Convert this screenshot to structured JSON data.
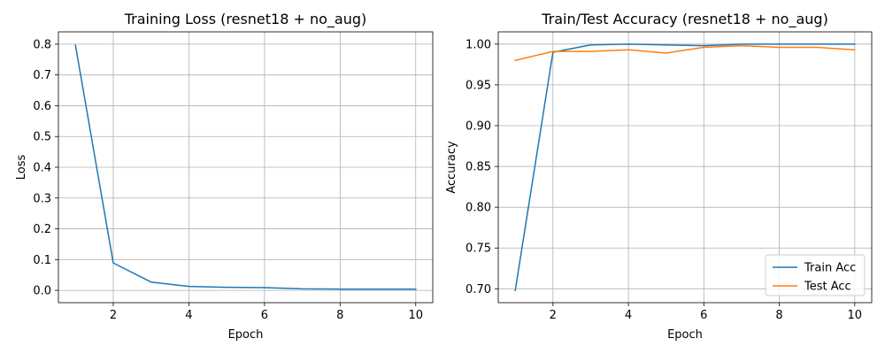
{
  "chart_data": [
    {
      "type": "line",
      "title": "Training Loss (resnet18 + no_aug)",
      "xlabel": "Epoch",
      "ylabel": "Loss",
      "xlim": [
        0.55,
        10.45
      ],
      "ylim": [
        -0.04,
        0.84
      ],
      "xticks": [
        2,
        4,
        6,
        8,
        10
      ],
      "xtick_labels": [
        "2",
        "4",
        "6",
        "8",
        "10"
      ],
      "yticks": [
        0.0,
        0.1,
        0.2,
        0.3,
        0.4,
        0.5,
        0.6,
        0.7,
        0.8
      ],
      "ytick_labels": [
        "0.0",
        "0.1",
        "0.2",
        "0.3",
        "0.4",
        "0.5",
        "0.6",
        "0.7",
        "0.8"
      ],
      "grid": true,
      "legend": "none",
      "x": [
        1,
        2,
        3,
        4,
        5,
        6,
        7,
        8,
        9,
        10
      ],
      "series": [
        {
          "name": "",
          "color": "#1f77b4",
          "values": [
            0.797,
            0.089,
            0.027,
            0.013,
            0.01,
            0.009,
            0.005,
            0.004,
            0.004,
            0.004
          ]
        }
      ]
    },
    {
      "type": "line",
      "title": "Train/Test Accuracy (resnet18 + no_aug)",
      "xlabel": "Epoch",
      "ylabel": "Accuracy",
      "xlim": [
        0.55,
        10.45
      ],
      "ylim": [
        0.683,
        1.015
      ],
      "xticks": [
        2,
        4,
        6,
        8,
        10
      ],
      "xtick_labels": [
        "2",
        "4",
        "6",
        "8",
        "10"
      ],
      "yticks": [
        0.7,
        0.75,
        0.8,
        0.85,
        0.9,
        0.95,
        1.0
      ],
      "ytick_labels": [
        "0.70",
        "0.75",
        "0.80",
        "0.85",
        "0.90",
        "0.95",
        "1.00"
      ],
      "grid": true,
      "legend": "lower-right",
      "x": [
        1,
        2,
        3,
        4,
        5,
        6,
        7,
        8,
        9,
        10
      ],
      "series": [
        {
          "name": "Train Acc",
          "color": "#1f77b4",
          "values": [
            0.698,
            0.99,
            0.999,
            1.0,
            0.999,
            0.998,
            1.0,
            1.0,
            1.0,
            1.0
          ]
        },
        {
          "name": "Test Acc",
          "color": "#ff7f0e",
          "values": [
            0.98,
            0.991,
            0.991,
            0.993,
            0.989,
            0.996,
            0.998,
            0.996,
            0.996,
            0.993
          ]
        }
      ]
    }
  ]
}
